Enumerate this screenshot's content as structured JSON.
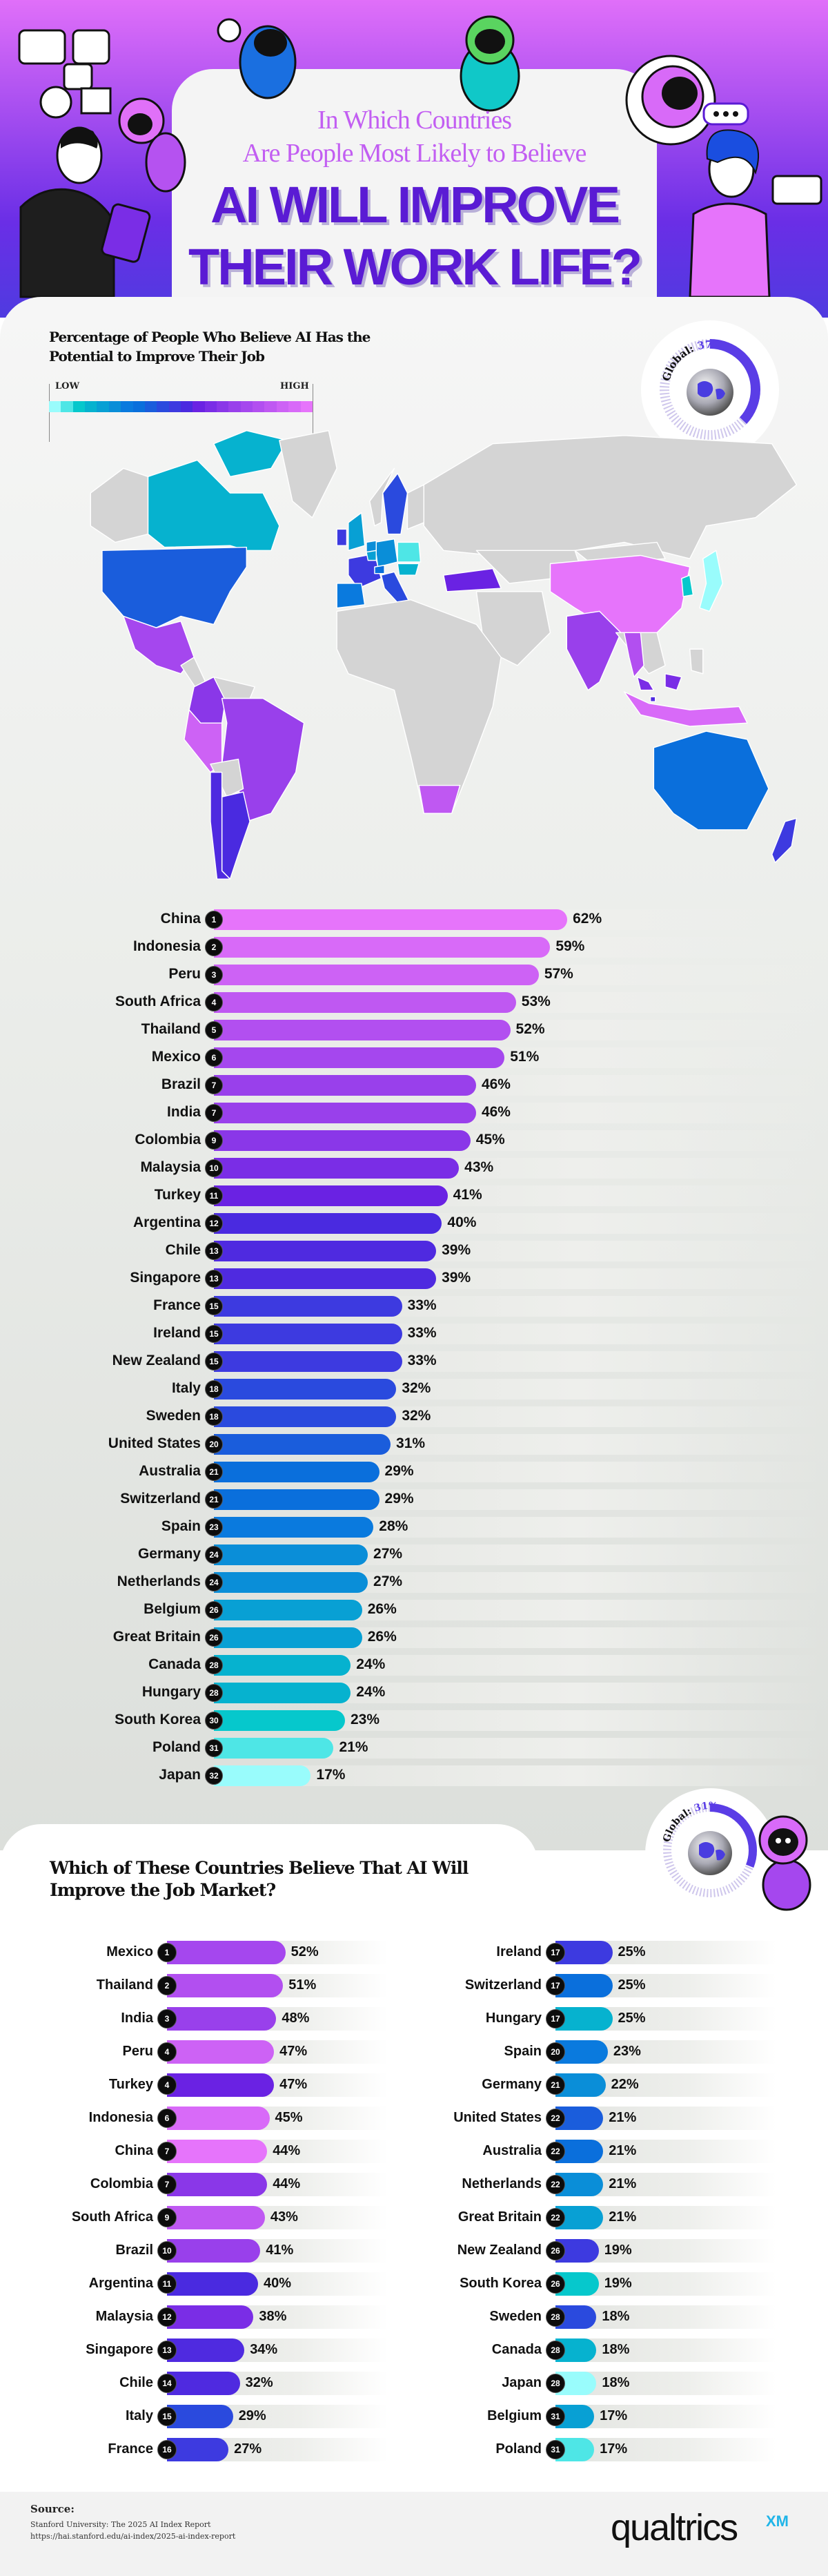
{
  "header": {
    "title_line1": "In Which Countries",
    "title_line2": "Are People Most Likely to Believe",
    "title_line3": "AI WILL IMPROVE",
    "title_line4": "THEIR WORK LIFE?"
  },
  "map_section": {
    "title": "Percentage of People Who Believe AI Has the Potential to Improve Their Job",
    "legend_low": "LOW",
    "legend_high": "HIGH",
    "legend_colors": [
      "#99fcfc",
      "#4ee6e6",
      "#06c8cc",
      "#06b2cf",
      "#08a0d4",
      "#0a8ed8",
      "#0a7ade",
      "#0a6fdc",
      "#1a5ddc",
      "#2a4ade",
      "#3d3ae0",
      "#4a2ae0",
      "#6a22e3",
      "#7a2de6",
      "#8a37e8",
      "#9940eb",
      "#a547ee",
      "#b24ff0",
      "#bf58f2",
      "#cd62f5",
      "#d86af8",
      "#e674fb"
    ],
    "global_label": "Global:",
    "global_value": "37%",
    "global_fraction": 0.37
  },
  "section2": {
    "title": "Which of These Countries Believe That AI Will Improve the Job Market?",
    "global_label": "Global:",
    "global_value": "31%",
    "global_fraction": 0.31
  },
  "country_colors": {
    "China": "#e674fb",
    "Indonesia": "#d86af8",
    "Peru": "#cd62f5",
    "South Africa": "#bf58f2",
    "Thailand": "#b24ff0",
    "Mexico": "#a547ee",
    "Brazil": "#9940eb",
    "India": "#9940eb",
    "Colombia": "#8a37e8",
    "Malaysia": "#7a2de6",
    "Turkey": "#6a22e3",
    "Argentina": "#4a2ae0",
    "Chile": "#4f2ae0",
    "Singapore": "#4f2ae0",
    "France": "#3d3ae0",
    "Ireland": "#3d3ae0",
    "New Zealand": "#3d3ae0",
    "Italy": "#2a4ade",
    "Sweden": "#2a4ade",
    "United States": "#1a5ddc",
    "Australia": "#0a6fdc",
    "Switzerland": "#0a6fdc",
    "Spain": "#0a7ade",
    "Germany": "#0a8ed8",
    "Netherlands": "#0a8ed8",
    "Belgium": "#08a0d4",
    "Great Britain": "#08a0d4",
    "Canada": "#06b2cf",
    "Hungary": "#06b2cf",
    "South Korea": "#06c8cc",
    "Poland": "#4ee6e6",
    "Japan": "#99fcfc"
  },
  "chart_data": [
    {
      "type": "bar",
      "orientation": "horizontal",
      "title": "Percentage of People Who Believe AI Has the Potential to Improve Their Job",
      "categories": [
        "China",
        "Indonesia",
        "Peru",
        "South Africa",
        "Thailand",
        "Mexico",
        "Brazil",
        "India",
        "Colombia",
        "Malaysia",
        "Turkey",
        "Argentina",
        "Chile",
        "Singapore",
        "France",
        "Ireland",
        "New Zealand",
        "Italy",
        "Sweden",
        "United States",
        "Australia",
        "Switzerland",
        "Spain",
        "Germany",
        "Netherlands",
        "Belgium",
        "Great Britain",
        "Canada",
        "Hungary",
        "South Korea",
        "Poland",
        "Japan"
      ],
      "ranks": [
        1,
        2,
        3,
        4,
        5,
        6,
        7,
        7,
        9,
        10,
        11,
        12,
        13,
        13,
        15,
        15,
        15,
        18,
        18,
        20,
        21,
        21,
        23,
        24,
        24,
        26,
        26,
        28,
        28,
        30,
        31,
        32
      ],
      "values": [
        62,
        59,
        57,
        53,
        52,
        51,
        46,
        46,
        45,
        43,
        41,
        40,
        39,
        39,
        33,
        33,
        33,
        32,
        32,
        31,
        29,
        29,
        28,
        27,
        27,
        26,
        26,
        24,
        24,
        23,
        21,
        17
      ],
      "unit": "%"
    },
    {
      "type": "bar",
      "orientation": "horizontal",
      "title": "Which of These Countries Believe That AI Will Improve the Job Market?",
      "categories": [
        "Mexico",
        "Thailand",
        "India",
        "Peru",
        "Turkey",
        "Indonesia",
        "China",
        "Colombia",
        "South Africa",
        "Brazil",
        "Argentina",
        "Malaysia",
        "Singapore",
        "Chile",
        "Italy",
        "France",
        "Ireland",
        "Switzerland",
        "Hungary",
        "Spain",
        "Germany",
        "United States",
        "Australia",
        "Netherlands",
        "Great Britain",
        "New Zealand",
        "South Korea",
        "Sweden",
        "Canada",
        "Japan",
        "Belgium",
        "Poland"
      ],
      "ranks": [
        1,
        2,
        3,
        4,
        4,
        6,
        7,
        7,
        9,
        10,
        11,
        12,
        13,
        14,
        15,
        16,
        17,
        17,
        17,
        20,
        21,
        22,
        22,
        22,
        22,
        26,
        26,
        28,
        28,
        28,
        31,
        31
      ],
      "values": [
        52,
        51,
        48,
        47,
        47,
        45,
        44,
        44,
        43,
        41,
        40,
        38,
        34,
        32,
        29,
        27,
        25,
        25,
        25,
        23,
        22,
        21,
        21,
        21,
        21,
        19,
        19,
        18,
        18,
        18,
        17,
        17
      ],
      "unit": "%"
    }
  ],
  "footer": {
    "source_heading": "Source:",
    "source_line1": "Stanford University: The 2025 AI Index Report",
    "source_line2": "https://hai.stanford.edu/ai-index/2025-ai-index-report",
    "logo_text": "qualtrics",
    "logo_suffix": "XM"
  }
}
